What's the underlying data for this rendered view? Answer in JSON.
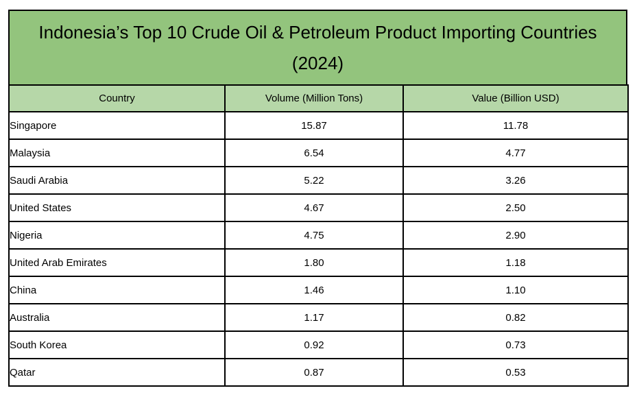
{
  "table": {
    "title": "Indonesia’s Top 10 Crude Oil & Petroleum Product Importing Countries",
    "subtitle": "(2024)",
    "columns": [
      "Country",
      "Volume (Million Tons)",
      "Value (Billion USD)"
    ]
  },
  "colors": {
    "title_bg": "#93C47D",
    "header_bg": "#B6D7A8",
    "border": "#000000",
    "text": "#000000"
  },
  "chart_data": {
    "type": "table",
    "title": "Indonesia’s Top 10 Crude Oil & Petroleum Product Importing Countries (2024)",
    "columns": [
      "Country",
      "Volume (Million Tons)",
      "Value (Billion USD)"
    ],
    "rows": [
      [
        "Singapore",
        "15.87",
        "11.78"
      ],
      [
        "Malaysia",
        "6.54",
        "4.77"
      ],
      [
        "Saudi Arabia",
        "5.22",
        "3.26"
      ],
      [
        "United States",
        "4.67",
        "2.50"
      ],
      [
        "Nigeria",
        "4.75",
        "2.90"
      ],
      [
        "United Arab Emirates",
        "1.80",
        "1.18"
      ],
      [
        "China",
        "1.46",
        "1.10"
      ],
      [
        "Australia",
        "1.17",
        "0.82"
      ],
      [
        "South Korea",
        "0.92",
        "0.73"
      ],
      [
        "Qatar",
        "0.87",
        "0.53"
      ]
    ]
  }
}
